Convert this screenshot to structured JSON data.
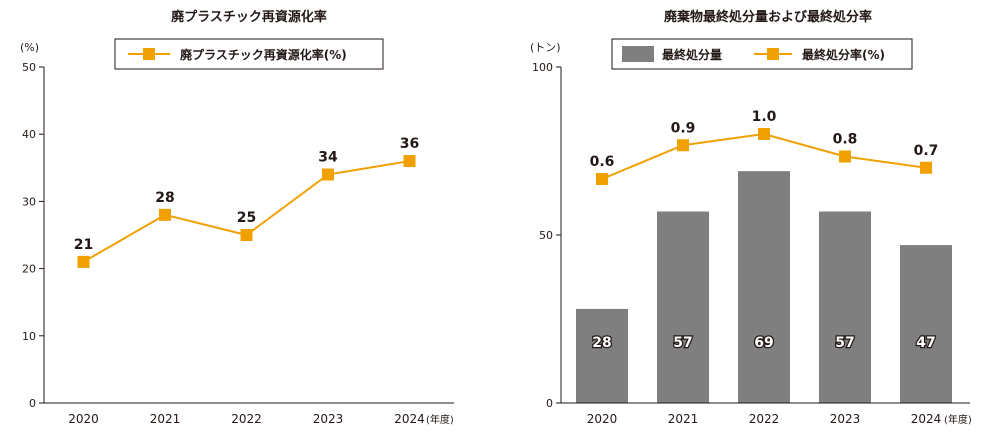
{
  "colors": {
    "accent": "#f0a000",
    "bar": "#7f7f7f",
    "axis": "#231815",
    "text": "#231815",
    "bar_label": "#ffffff"
  },
  "chart_data": [
    {
      "type": "line",
      "title": "廃プラスチック再資源化率",
      "ylabel": "(%)",
      "xlabel": "",
      "categories": [
        "2020",
        "2021",
        "2022",
        "2023",
        "2024"
      ],
      "x_suffix": "(年度)",
      "yticks": [
        "0",
        "10",
        "20",
        "30",
        "40",
        "50"
      ],
      "ylim": [
        0,
        50
      ],
      "series": [
        {
          "name": "廃プラスチック再資源化率(%)",
          "values": [
            21,
            28,
            25,
            34,
            36
          ],
          "labels": [
            "21",
            "28",
            "25",
            "34",
            "36"
          ]
        }
      ],
      "legend": "top-center",
      "grid": false
    },
    {
      "type": "bar",
      "title": "廃棄物最終処分量および最終処分率",
      "ylabel": "(トン)",
      "xlabel": "",
      "categories": [
        "2020",
        "2021",
        "2022",
        "2023",
        "2024"
      ],
      "x_suffix": "(年度)",
      "yticks": [
        "0",
        "50",
        "100"
      ],
      "ylim": [
        0,
        100
      ],
      "series": [
        {
          "name": "最終処分量",
          "type": "bar",
          "values": [
            28,
            57,
            69,
            57,
            47
          ],
          "labels": [
            "28",
            "57",
            "69",
            "57",
            "47"
          ]
        },
        {
          "name": "最終処分率(%)",
          "type": "line",
          "values": [
            0.6,
            0.9,
            1.0,
            0.8,
            0.7
          ],
          "labels": [
            "0.6",
            "0.9",
            "1.0",
            "0.8",
            "0.7"
          ],
          "axis": "secondary-unlabeled"
        }
      ],
      "legend": "top-center",
      "grid": false
    }
  ]
}
